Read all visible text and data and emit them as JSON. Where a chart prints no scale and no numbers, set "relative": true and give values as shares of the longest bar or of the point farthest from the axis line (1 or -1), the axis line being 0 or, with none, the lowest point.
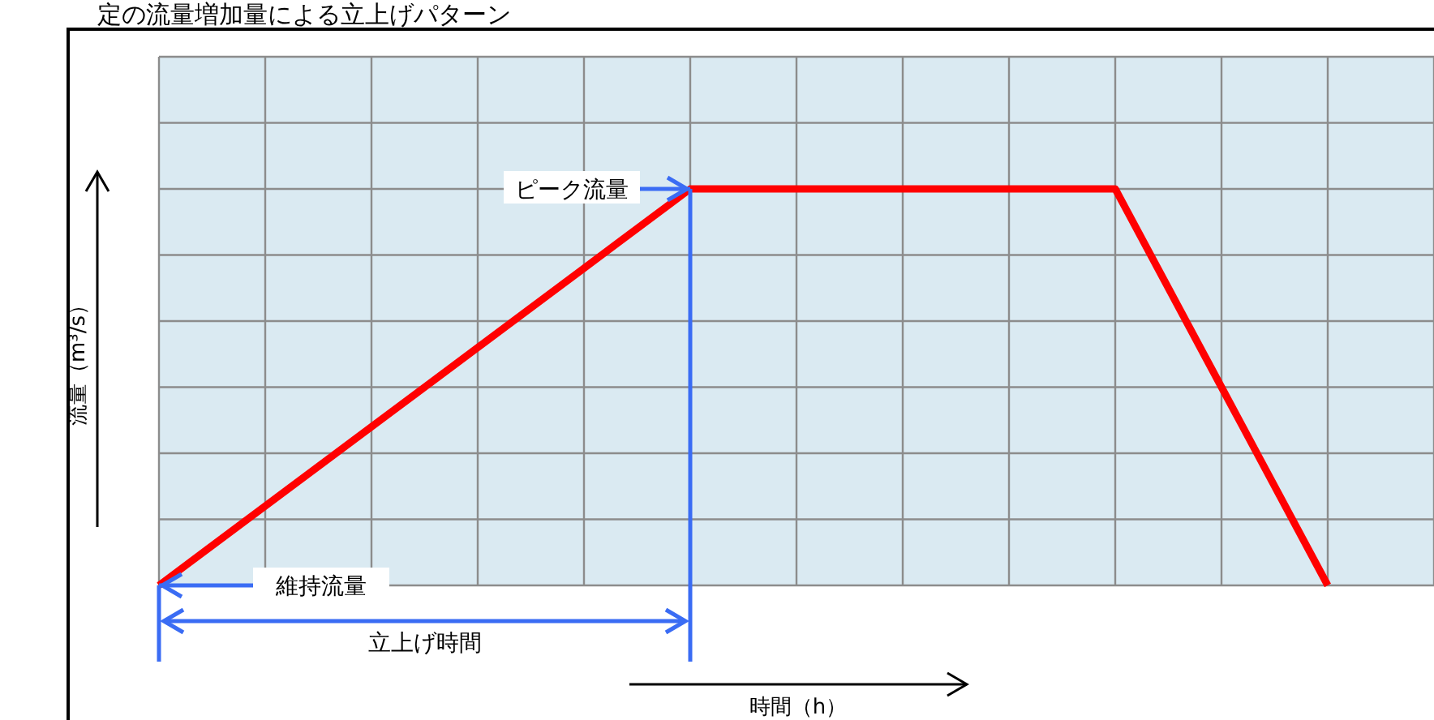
{
  "chart_data": {
    "type": "line",
    "title": "定の流量増加量による立上げパターン",
    "ylabel": "流量（m³/s）",
    "relative": true,
    "categories": [
      null,
      null,
      null,
      null,
      null,
      null,
      null,
      null,
      null,
      null,
      null,
      null
    ],
    "series": [
      {
        "color": "#ff0000",
        "values": [
          0,
          0.2,
          0.4,
          0.6,
          0.8,
          1,
          1,
          1,
          1,
          1,
          0.5,
          0
        ]
      }
    ],
    "grid": true,
    "marker": "none",
    "line_style": "solid",
    "annotations": [
      "ピーク流量",
      "維持流量",
      "立上げ時間",
      "時間（h）"
    ]
  }
}
